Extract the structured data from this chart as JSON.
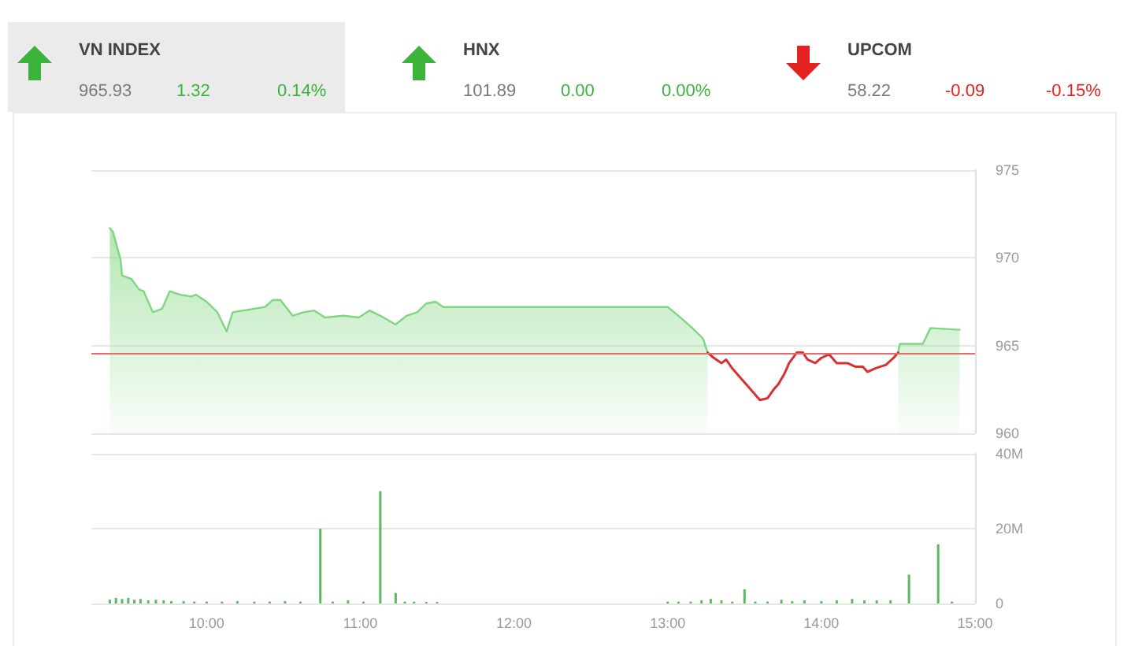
{
  "chart_data": [
    {
      "type": "other",
      "title": "VN INDEX",
      "values": [
        965.93,
        1.32,
        0.14
      ],
      "value_labels": [
        "965.93",
        "1.32",
        "0.14%"
      ]
    },
    {
      "type": "other",
      "title": "HNX",
      "values": [
        101.89,
        0,
        0
      ],
      "value_labels": [
        "101.89",
        "0.00",
        "0.00%"
      ]
    },
    {
      "type": "other",
      "title": "UPCOM",
      "values": [
        58.22,
        -0.09,
        -0.15
      ],
      "value_labels": [
        "58.22",
        "-0.09",
        "-0.15%"
      ]
    },
    {
      "type": "area",
      "xlim": [
        9.25,
        15
      ],
      "ylim": [
        960,
        975
      ],
      "yticks": [
        960,
        965,
        970,
        975
      ],
      "grid": "y",
      "tick_labels": "y",
      "marker": "none",
      "x": [
        9.37,
        9.39,
        9.44,
        9.45,
        9.51,
        9.56,
        9.59,
        9.65,
        9.71,
        9.76,
        9.83,
        9.9,
        9.93,
        10.0,
        10.07,
        10.13,
        10.17,
        10.24,
        10.31,
        10.38,
        10.43,
        10.48,
        10.56,
        10.63,
        10.7,
        10.77,
        10.89,
        10.99,
        11.06,
        11.13,
        11.23,
        11.3,
        11.37,
        11.43,
        11.49,
        11.54,
        13.0,
        13.07,
        13.16,
        13.23,
        13.26,
        13.9,
        14.5,
        14.51,
        14.66,
        14.71,
        14.9
      ],
      "series": [
        {
          "type": "area",
          "color": "#7fd67f",
          "values": [
            971.7,
            971.5,
            969.9,
            969.0,
            968.8,
            968.2,
            968.1,
            966.9,
            967.1,
            968.1,
            967.9,
            967.8,
            967.9,
            967.5,
            966.9,
            965.8,
            966.9,
            967.0,
            967.1,
            967.2,
            967.6,
            967.6,
            966.7,
            966.9,
            967.0,
            966.6,
            966.7,
            966.6,
            967.0,
            966.7,
            966.2,
            966.7,
            966.9,
            967.4,
            967.5,
            967.2,
            967.2,
            966.7,
            966.0,
            965.4,
            964.6,
            null,
            964.6,
            965.1,
            965.1,
            966.0,
            965.9
          ]
        },
        {
          "type": "line",
          "color": "#d93030",
          "x": [
            13.26,
            13.3,
            13.35,
            13.38,
            13.42,
            13.48,
            13.55,
            13.6,
            13.65,
            13.69,
            13.72,
            13.76,
            13.79,
            13.84,
            13.88,
            13.91,
            13.96,
            14.0,
            14.05,
            14.1,
            14.17,
            14.22,
            14.27,
            14.3,
            14.35,
            14.42,
            14.47,
            14.5
          ],
          "values": [
            964.6,
            964.3,
            964.0,
            964.2,
            963.7,
            963.1,
            962.4,
            961.9,
            962.0,
            962.5,
            962.8,
            963.4,
            964.0,
            964.6,
            964.6,
            964.2,
            964.0,
            964.3,
            964.5,
            964.0,
            964.0,
            963.8,
            963.8,
            963.5,
            963.7,
            963.9,
            964.3,
            964.6
          ]
        }
      ],
      "ref_lines": [
        {
          "axis": "y",
          "value": 964.6,
          "color": "#e86a6a"
        }
      ]
    },
    {
      "type": "bar",
      "xlim": [
        9.25,
        15
      ],
      "xticks": [
        {
          "value": 10,
          "label": "10:00"
        },
        {
          "value": 11,
          "label": "11:00"
        },
        {
          "value": 12,
          "label": "12:00"
        },
        {
          "value": 13,
          "label": "13:00"
        },
        {
          "value": 14,
          "label": "14:00"
        },
        {
          "value": 15,
          "label": "15:00"
        }
      ],
      "ylim": [
        0,
        40
      ],
      "yticks": [
        0,
        {
          "value": 20,
          "label": "20M"
        },
        {
          "value": 40,
          "label": "40M"
        }
      ],
      "grid": "y",
      "color": "#5cb85c",
      "x": [
        9.37,
        9.41,
        9.45,
        9.49,
        9.53,
        9.57,
        9.62,
        9.67,
        9.72,
        9.77,
        9.85,
        9.92,
        10.0,
        10.1,
        10.2,
        10.31,
        10.41,
        10.51,
        10.61,
        10.74,
        10.82,
        10.92,
        11.02,
        11.13,
        11.23,
        11.29,
        11.35,
        11.43,
        11.5,
        13.0,
        13.07,
        13.15,
        13.22,
        13.28,
        13.35,
        13.42,
        13.5,
        13.57,
        13.65,
        13.74,
        13.81,
        13.89,
        14.0,
        14.1,
        14.2,
        14.28,
        14.36,
        14.45,
        14.57,
        14.76,
        14.85
      ],
      "values": [
        1.0,
        1.5,
        1.2,
        1.5,
        1.0,
        1.2,
        0.8,
        1.0,
        0.8,
        0.6,
        0.6,
        0.5,
        0.5,
        0.5,
        0.6,
        0.5,
        0.5,
        0.6,
        0.5,
        20.0,
        0.5,
        0.8,
        0.5,
        30.0,
        2.8,
        0.5,
        0.5,
        0.4,
        0.4,
        0.5,
        0.5,
        0.5,
        0.8,
        1.2,
        0.8,
        0.5,
        3.8,
        0.5,
        0.5,
        1.0,
        0.6,
        0.8,
        0.6,
        0.8,
        1.2,
        0.8,
        0.8,
        0.8,
        7.7,
        15.8,
        0.5
      ]
    }
  ]
}
